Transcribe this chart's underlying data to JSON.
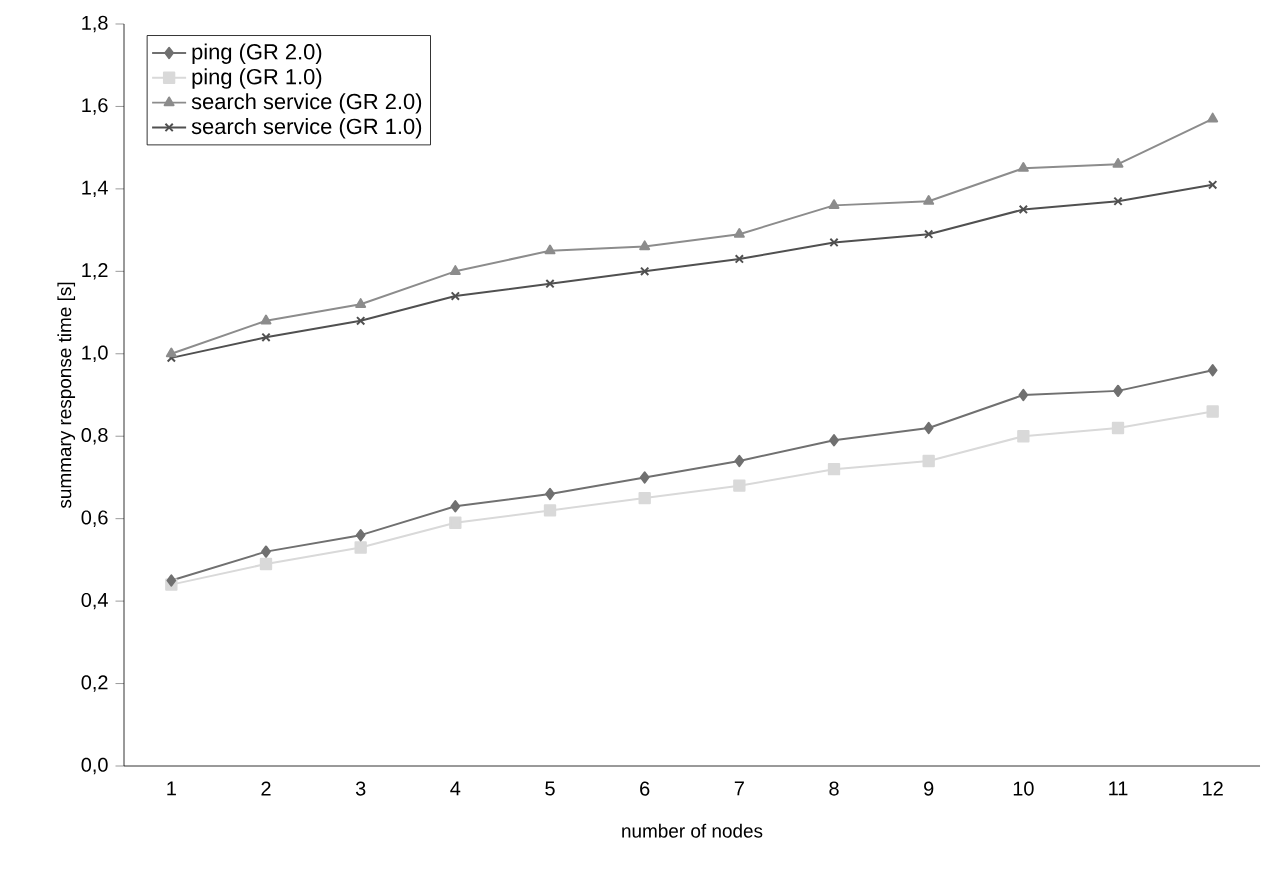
{
  "chart_data": {
    "type": "line",
    "xlabel": "number of nodes",
    "ylabel": "summary response time [s]",
    "categories": [
      "1",
      "2",
      "3",
      "4",
      "5",
      "6",
      "7",
      "8",
      "9",
      "10",
      "11",
      "12"
    ],
    "series": [
      {
        "name": "ping (GR 2.0)",
        "color": "#707070",
        "marker": "diamond",
        "values": [
          0.45,
          0.52,
          0.56,
          0.63,
          0.66,
          0.7,
          0.74,
          0.79,
          0.82,
          0.9,
          0.91,
          0.96
        ]
      },
      {
        "name": "ping (GR 1.0)",
        "color": "#d9d9d9",
        "marker": "square",
        "values": [
          0.44,
          0.49,
          0.53,
          0.59,
          0.62,
          0.65,
          0.68,
          0.72,
          0.74,
          0.8,
          0.82,
          0.86
        ]
      },
      {
        "name": "search service (GR 2.0)",
        "color": "#8c8c8c",
        "marker": "triangle",
        "values": [
          1.0,
          1.08,
          1.12,
          1.2,
          1.25,
          1.26,
          1.29,
          1.36,
          1.37,
          1.45,
          1.46,
          1.57
        ]
      },
      {
        "name": "search service (GR 1.0)",
        "color": "#505050",
        "marker": "cross",
        "values": [
          0.99,
          1.04,
          1.08,
          1.14,
          1.17,
          1.2,
          1.23,
          1.27,
          1.29,
          1.35,
          1.37,
          1.41
        ]
      }
    ],
    "ylim": [
      0,
      1.8
    ],
    "yticks": [
      {
        "value": 0,
        "label": "0,0"
      },
      {
        "value": 0.2,
        "label": "0,2"
      },
      {
        "value": 0.4,
        "label": "0,4"
      },
      {
        "value": 0.6,
        "label": "0,6"
      },
      {
        "value": 0.8,
        "label": "0,8"
      },
      {
        "value": 1.0,
        "label": "1,0"
      },
      {
        "value": 1.2,
        "label": "1,2"
      },
      {
        "value": 1.4,
        "label": "1,4"
      },
      {
        "value": 1.6,
        "label": "1,6"
      },
      {
        "value": 1.8,
        "label": "1,8"
      }
    ],
    "grid": false,
    "legend": "top left",
    "line_style": "solid"
  }
}
